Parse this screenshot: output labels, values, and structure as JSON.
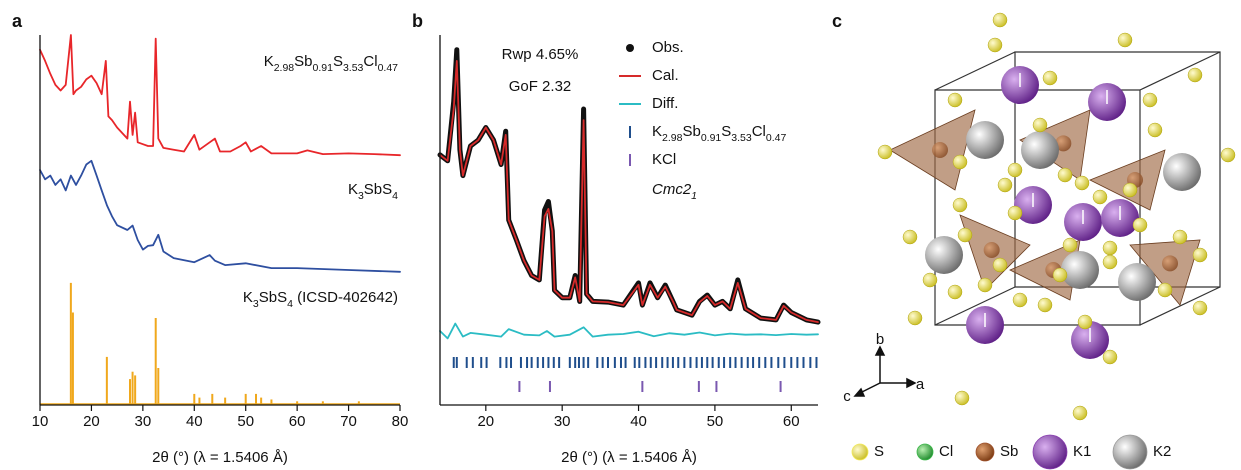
{
  "chart_data": [
    {
      "panel": "a",
      "type": "line",
      "xlabel": "2θ (°) (λ = 1.5406 Å)",
      "xlim": [
        10,
        80
      ],
      "xticks": [
        10,
        20,
        30,
        40,
        50,
        60,
        70,
        80
      ],
      "ylim": [
        0,
        100
      ],
      "series": [
        {
          "label": [
            {
              "t": "K",
              "sub": "2.98"
            },
            {
              "t": "Sb",
              "sub": "0.91"
            },
            {
              "t": "S",
              "sub": "3.53"
            },
            {
              "t": "Cl",
              "sub": "0.47"
            }
          ],
          "color": "#e8262a",
          "style": "line",
          "x": [
            10,
            11,
            12,
            13,
            14,
            15,
            16,
            16.5,
            17,
            18,
            19,
            20,
            21,
            22,
            22.8,
            23.3,
            24,
            25,
            26,
            27,
            27.5,
            28,
            28.5,
            29,
            30,
            31,
            32,
            32.5,
            33,
            34,
            36,
            38,
            40,
            41,
            43,
            44,
            45,
            47,
            49,
            50,
            51,
            53,
            55,
            60,
            62,
            65,
            70,
            75,
            80
          ],
          "values": [
            96,
            93,
            89.5,
            86.5,
            85,
            86.5,
            100,
            84,
            85,
            86,
            88,
            89,
            87,
            84,
            93,
            78,
            77,
            75,
            73.5,
            72,
            82,
            73,
            79,
            71,
            70.5,
            70,
            70,
            99,
            72,
            69.5,
            69,
            68.5,
            73,
            69,
            71,
            72,
            68.5,
            68.5,
            70,
            71,
            68.5,
            70,
            68,
            68,
            68.8,
            67.8,
            68,
            67.8,
            67.5
          ]
        },
        {
          "label": [
            {
              "t": "K",
              "sub": "3"
            },
            {
              "t": "SbS",
              "sub": "4"
            }
          ],
          "color": "#2e4fa0",
          "style": "line",
          "x": [
            10,
            11,
            12,
            13,
            14,
            15,
            16,
            17,
            18,
            19,
            20,
            21,
            22,
            23,
            24,
            25,
            27,
            28,
            29,
            30,
            31,
            32,
            33,
            34,
            36,
            40,
            43,
            44,
            46,
            50,
            55,
            60,
            70,
            80
          ],
          "values": [
            63.5,
            61,
            62,
            59.5,
            61,
            58,
            62,
            59.5,
            62,
            65,
            66,
            62,
            58,
            54,
            51,
            48.6,
            47.3,
            48.5,
            44.6,
            42,
            43,
            43.2,
            46,
            41.5,
            39.7,
            38.6,
            40.5,
            39,
            37.8,
            38.3,
            37,
            37,
            36.5,
            36
          ]
        },
        {
          "label": [
            {
              "t": "K",
              "sub": "3"
            },
            {
              "t": "SbS",
              "sub": "4"
            },
            {
              "t": " (ICSD-402642)"
            }
          ],
          "color": "#f0a81c",
          "style": "stick",
          "x": [
            16,
            16.4,
            23,
            27.5,
            28,
            28.5,
            32.5,
            33,
            40,
            41,
            43.5,
            46,
            50,
            52,
            53,
            55,
            60,
            65,
            72
          ],
          "values": [
            33,
            25,
            13,
            7,
            9,
            8,
            23.5,
            10,
            3,
            2,
            3,
            2,
            3,
            3,
            2,
            1.5,
            1,
            1,
            1
          ]
        }
      ]
    },
    {
      "panel": "b",
      "type": "line",
      "xlabel": "2θ (°) (λ = 1.5406 Å)",
      "xlim": [
        14,
        63.5
      ],
      "xticks": [
        20,
        30,
        40,
        50,
        60
      ],
      "ylim": [
        0,
        100
      ],
      "annotations": [
        "Rwp 4.65%",
        "GoF 2.32"
      ],
      "series": [
        {
          "name": "Obs.",
          "color": "#111111",
          "style": "dots",
          "x": [
            14,
            15,
            15.8,
            16.2,
            16.6,
            17,
            18,
            19,
            20,
            21,
            22,
            22.6,
            23,
            24,
            25,
            26,
            27,
            27.7,
            28.2,
            28.7,
            29,
            30,
            31,
            31.7,
            32.3,
            32.8,
            33.2,
            34,
            36,
            38,
            40,
            40.5,
            41.5,
            42.5,
            43.5,
            44.5,
            45,
            47,
            48,
            49,
            50,
            51,
            52,
            53,
            54,
            56,
            58,
            59,
            60,
            62,
            63.5
          ],
          "values": [
            67.6,
            66,
            82,
            96,
            69,
            62,
            70,
            71.6,
            75,
            71.6,
            65,
            74,
            50,
            44.6,
            39,
            35,
            33.8,
            52.7,
            55,
            47,
            31,
            29,
            29,
            35,
            28,
            80,
            30,
            28,
            27.8,
            27,
            33,
            27,
            33,
            29,
            32.4,
            28,
            25.7,
            24.3,
            28,
            29.7,
            27,
            28,
            26,
            33.8,
            26,
            23.5,
            23,
            27,
            25,
            23,
            22.4
          ]
        },
        {
          "name": "Cal.",
          "color": "#d62a2a",
          "style": "line",
          "x": [
            14,
            15,
            15.8,
            16.2,
            16.6,
            17,
            18,
            19,
            20,
            21,
            22,
            22.6,
            23,
            24,
            25,
            26,
            27,
            27.7,
            28.2,
            28.7,
            29,
            30,
            31,
            31.7,
            32.3,
            32.8,
            33.2,
            34,
            36,
            38,
            40,
            40.5,
            41.5,
            42.5,
            43.5,
            44.5,
            45,
            47,
            48,
            49,
            50,
            51,
            52,
            53,
            54,
            56,
            58,
            59,
            60,
            62,
            63.5
          ],
          "values": [
            67.6,
            66,
            80,
            93,
            69,
            62,
            70,
            71.6,
            75,
            71.6,
            65,
            73,
            50,
            44.6,
            39,
            35,
            33.8,
            51,
            53,
            47,
            31,
            29,
            29,
            34.5,
            28,
            77,
            30,
            28,
            27.8,
            27,
            32.5,
            27,
            32.5,
            29,
            32,
            28,
            25.7,
            24.3,
            27.8,
            29.5,
            27,
            28,
            26,
            33,
            26,
            23.5,
            23,
            26.8,
            25,
            23,
            22.4
          ]
        },
        {
          "name": "Diff.",
          "color": "#2bbcc4",
          "style": "line",
          "x": [
            14,
            15,
            16,
            17,
            18,
            20,
            22,
            23,
            25,
            27,
            28,
            29,
            31,
            32.8,
            34,
            36,
            38,
            40,
            42,
            44,
            46,
            48,
            50,
            52,
            54,
            56,
            58,
            60,
            62,
            63.5
          ],
          "values": [
            20,
            18,
            22,
            18.5,
            19.5,
            19,
            18.5,
            20.5,
            19,
            18.8,
            20,
            18.5,
            19,
            21,
            18.5,
            19,
            19.2,
            19.8,
            18.6,
            19.4,
            19,
            19.6,
            18.8,
            19.3,
            19,
            19.1,
            18.9,
            19.2,
            19,
            19.1
          ]
        }
      ],
      "phases": [
        {
          "label": [
            {
              "t": "K",
              "sub": "2.98"
            },
            {
              "t": "Sb",
              "sub": "0.91"
            },
            {
              "t": "S",
              "sub": "3.53"
            },
            {
              "t": "Cl",
              "sub": "0.47"
            }
          ],
          "color": "#1f4e8c",
          "reflections": [
            15.8,
            16.2,
            17.5,
            18.3,
            19.4,
            20.1,
            21.9,
            22.7,
            23.3,
            24.6,
            25.4,
            26.0,
            26.8,
            27.5,
            28.2,
            28.9,
            29.6,
            31.0,
            31.7,
            32.2,
            32.8,
            33.4,
            34.6,
            35.3,
            36.0,
            36.9,
            37.7,
            38.3,
            39.5,
            40.1,
            40.9,
            41.6,
            42.3,
            43.1,
            43.8,
            44.5,
            45.2,
            46.0,
            46.8,
            47.6,
            48.3,
            49.0,
            49.7,
            50.5,
            51.2,
            52.0,
            52.7,
            53.5,
            54.3,
            55.0,
            55.8,
            56.6,
            57.4,
            58.3,
            59.1,
            60.0,
            60.8,
            61.6,
            62.5,
            63.3
          ]
        },
        {
          "label": [
            {
              "t": "KCl"
            }
          ],
          "color": "#7a58b0",
          "reflections": [
            24.4,
            28.4,
            40.5,
            47.9,
            50.2,
            58.6
          ]
        }
      ],
      "space_group": [
        {
          "t": "Cmc2",
          "sub": "1"
        }
      ]
    }
  ],
  "structure": {
    "panel": "c",
    "axes": [
      "b",
      "c",
      "a"
    ],
    "legend": [
      {
        "label": "S",
        "color": "#f2ea5a"
      },
      {
        "label": "Cl",
        "color": "#3cb84a"
      },
      {
        "label": "Sb",
        "color": "#a0522d"
      },
      {
        "label": "K1",
        "color": "#8a3fb0"
      },
      {
        "label": "K2",
        "color": "#9a9a9a"
      }
    ]
  }
}
